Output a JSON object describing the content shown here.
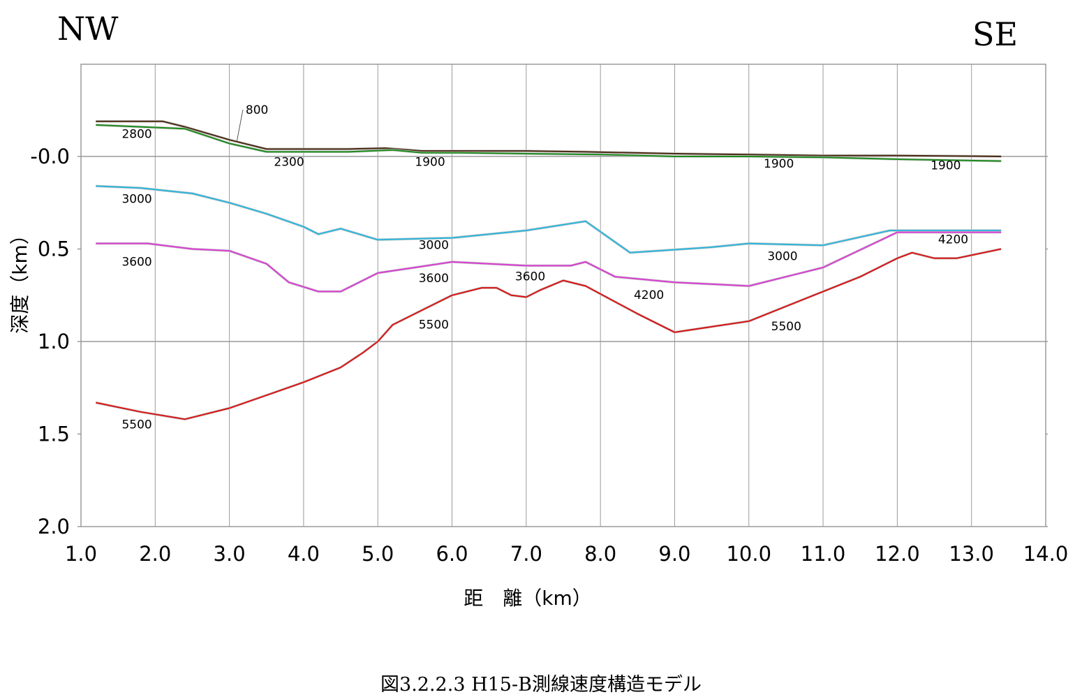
{
  "corner_labels": {
    "left": "NW",
    "right": "SE"
  },
  "caption": "図3.2.2.3  H15-B測線速度構造モデル",
  "chart_data": {
    "type": "line",
    "title": "",
    "xlabel": "距　離（km）",
    "ylabel": "深度（km）",
    "xlim": [
      1.0,
      14.0
    ],
    "ylim": [
      -0.5,
      2.0
    ],
    "y_inverted": true,
    "grid": {
      "vertical": true,
      "horizontal_at": [
        0.0,
        1.0
      ]
    },
    "xticks": [
      "1.0",
      "2.0",
      "3.0",
      "4.0",
      "5.0",
      "6.0",
      "7.0",
      "8.0",
      "9.0",
      "10.0",
      "11.0",
      "12.0",
      "13.0",
      "14.0"
    ],
    "ytick_values": [
      0.0,
      0.5,
      1.0,
      1.5,
      2.0
    ],
    "yticks": [
      "-0.0",
      "0.5",
      "1.0",
      "1.5",
      "2.0"
    ],
    "colors": {
      "brown": "#4a2a12",
      "green": "#1c8a1c",
      "cyan": "#2bb5dc",
      "magenta": "#d83ed2",
      "red": "#d81414",
      "grid": "#9a9a9a"
    },
    "series": [
      {
        "color": "brown",
        "points": [
          [
            1.2,
            -0.19
          ],
          [
            1.5,
            -0.19
          ],
          [
            2.1,
            -0.19
          ],
          [
            2.4,
            -0.16
          ],
          [
            3.0,
            -0.09
          ],
          [
            3.5,
            -0.04
          ],
          [
            4.6,
            -0.04
          ],
          [
            5.1,
            -0.045
          ],
          [
            5.6,
            -0.03
          ],
          [
            6.1,
            -0.03
          ],
          [
            7.0,
            -0.03
          ],
          [
            7.8,
            -0.025
          ],
          [
            9.0,
            -0.015
          ],
          [
            10.0,
            -0.01
          ],
          [
            11.0,
            -0.005
          ],
          [
            12.0,
            -0.005
          ],
          [
            13.4,
            0.0
          ]
        ]
      },
      {
        "color": "green",
        "points": [
          [
            1.2,
            -0.17
          ],
          [
            1.8,
            -0.16
          ],
          [
            2.4,
            -0.15
          ],
          [
            3.0,
            -0.07
          ],
          [
            3.5,
            -0.025
          ],
          [
            4.6,
            -0.025
          ],
          [
            5.2,
            -0.035
          ],
          [
            5.6,
            -0.02
          ],
          [
            6.1,
            -0.02
          ],
          [
            7.0,
            -0.015
          ],
          [
            8.0,
            -0.01
          ],
          [
            9.0,
            0.0
          ],
          [
            10.0,
            0.0
          ],
          [
            11.0,
            0.005
          ],
          [
            12.0,
            0.015
          ],
          [
            13.4,
            0.025
          ]
        ]
      },
      {
        "color": "cyan",
        "points": [
          [
            1.2,
            0.16
          ],
          [
            1.8,
            0.17
          ],
          [
            2.5,
            0.2
          ],
          [
            3.0,
            0.25
          ],
          [
            3.5,
            0.31
          ],
          [
            4.0,
            0.38
          ],
          [
            4.2,
            0.42
          ],
          [
            4.5,
            0.39
          ],
          [
            5.0,
            0.45
          ],
          [
            6.0,
            0.44
          ],
          [
            7.0,
            0.4
          ],
          [
            7.8,
            0.35
          ],
          [
            8.4,
            0.52
          ],
          [
            9.5,
            0.49
          ],
          [
            10.0,
            0.47
          ],
          [
            11.0,
            0.48
          ],
          [
            11.9,
            0.4
          ],
          [
            13.4,
            0.4
          ]
        ]
      },
      {
        "color": "magenta",
        "points": [
          [
            1.2,
            0.47
          ],
          [
            1.9,
            0.47
          ],
          [
            2.5,
            0.5
          ],
          [
            3.0,
            0.51
          ],
          [
            3.5,
            0.58
          ],
          [
            3.8,
            0.68
          ],
          [
            4.2,
            0.73
          ],
          [
            4.5,
            0.73
          ],
          [
            5.0,
            0.63
          ],
          [
            5.5,
            0.6
          ],
          [
            6.0,
            0.57
          ],
          [
            7.0,
            0.59
          ],
          [
            7.6,
            0.59
          ],
          [
            7.8,
            0.57
          ],
          [
            8.2,
            0.65
          ],
          [
            9.0,
            0.68
          ],
          [
            10.0,
            0.7
          ],
          [
            11.0,
            0.6
          ],
          [
            12.0,
            0.41
          ],
          [
            13.4,
            0.41
          ]
        ]
      },
      {
        "color": "red",
        "points": [
          [
            1.2,
            1.33
          ],
          [
            1.8,
            1.38
          ],
          [
            2.4,
            1.42
          ],
          [
            3.0,
            1.36
          ],
          [
            3.5,
            1.29
          ],
          [
            4.0,
            1.22
          ],
          [
            4.5,
            1.14
          ],
          [
            4.8,
            1.06
          ],
          [
            5.0,
            1.0
          ],
          [
            5.2,
            0.91
          ],
          [
            5.6,
            0.83
          ],
          [
            6.0,
            0.75
          ],
          [
            6.4,
            0.71
          ],
          [
            6.6,
            0.71
          ],
          [
            6.8,
            0.75
          ],
          [
            7.0,
            0.76
          ],
          [
            7.2,
            0.72
          ],
          [
            7.5,
            0.67
          ],
          [
            7.8,
            0.7
          ],
          [
            8.5,
            0.85
          ],
          [
            9.0,
            0.95
          ],
          [
            9.5,
            0.92
          ],
          [
            10.0,
            0.89
          ],
          [
            11.0,
            0.73
          ],
          [
            11.5,
            0.65
          ],
          [
            12.0,
            0.55
          ],
          [
            12.2,
            0.52
          ],
          [
            12.5,
            0.55
          ],
          [
            12.8,
            0.55
          ],
          [
            13.4,
            0.5
          ]
        ]
      }
    ],
    "annotations": [
      {
        "text": "800",
        "x": 3.05,
        "y": -0.23,
        "leader_to": [
          3.1,
          -0.08
        ]
      },
      {
        "text": "2800",
        "x": 1.55,
        "y": -0.1
      },
      {
        "text": "2300",
        "x": 3.6,
        "y": 0.05
      },
      {
        "text": "1900",
        "x": 5.5,
        "y": 0.05
      },
      {
        "text": "1900",
        "x": 10.2,
        "y": 0.06
      },
      {
        "text": "1900",
        "x": 12.45,
        "y": 0.07
      },
      {
        "text": "3000",
        "x": 1.55,
        "y": 0.25
      },
      {
        "text": "3000",
        "x": 5.55,
        "y": 0.5
      },
      {
        "text": "3000",
        "x": 10.25,
        "y": 0.56
      },
      {
        "text": "3600",
        "x": 1.55,
        "y": 0.59
      },
      {
        "text": "3600",
        "x": 5.55,
        "y": 0.68
      },
      {
        "text": "3600",
        "x": 6.85,
        "y": 0.67
      },
      {
        "text": "4200",
        "x": 8.45,
        "y": 0.77
      },
      {
        "text": "4200",
        "x": 12.55,
        "y": 0.47
      },
      {
        "text": "5500",
        "x": 5.55,
        "y": 0.93
      },
      {
        "text": "5500",
        "x": 10.3,
        "y": 0.94
      },
      {
        "text": "5500",
        "x": 1.55,
        "y": 1.47
      }
    ]
  }
}
